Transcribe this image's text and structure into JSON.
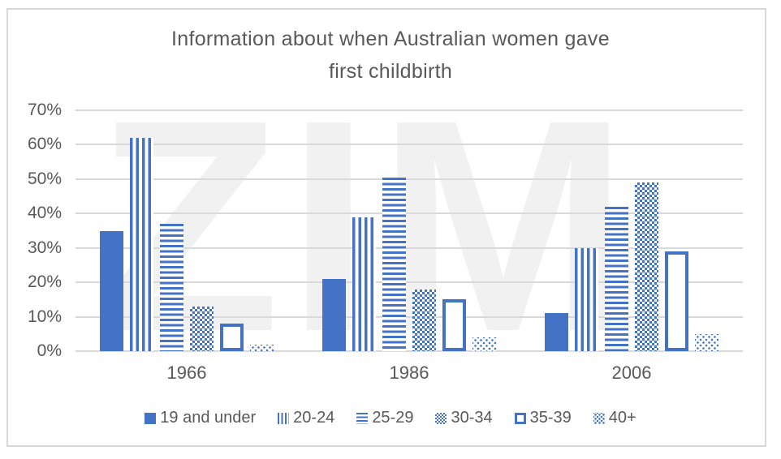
{
  "header": {
    "title_line1": "Information about when Australian women gave",
    "title_line2": "first childbirth"
  },
  "watermark": "ZIM",
  "colors": {
    "bar_blue": "#4472C4",
    "text_gray": "#595959",
    "gridline_gray": "#D9D9D9",
    "watermark_gray": "#F1F1F1"
  },
  "chart_data": {
    "type": "bar",
    "title": "Information about when Australian women gave first childbirth",
    "categories": [
      "1966",
      "1986",
      "2006"
    ],
    "series": [
      {
        "name": "19 and under",
        "pattern": "solid",
        "values": [
          35,
          21,
          11
        ]
      },
      {
        "name": "20-24",
        "pattern": "vstripes",
        "values": [
          62,
          39,
          30
        ]
      },
      {
        "name": "25-29",
        "pattern": "hstripes",
        "values": [
          37,
          50.5,
          42
        ]
      },
      {
        "name": "30-34",
        "pattern": "checker",
        "values": [
          13,
          18,
          49
        ]
      },
      {
        "name": "35-39",
        "pattern": "outline",
        "values": [
          8,
          15,
          29
        ]
      },
      {
        "name": "40+",
        "pattern": "dots",
        "values": [
          2,
          4,
          5
        ]
      }
    ],
    "xlabel": "",
    "ylabel": "",
    "ylim": [
      0,
      70
    ],
    "yticks": [
      "0%",
      "10%",
      "20%",
      "30%",
      "40%",
      "50%",
      "60%",
      "70%"
    ],
    "grid": true,
    "legend_position": "bottom"
  }
}
